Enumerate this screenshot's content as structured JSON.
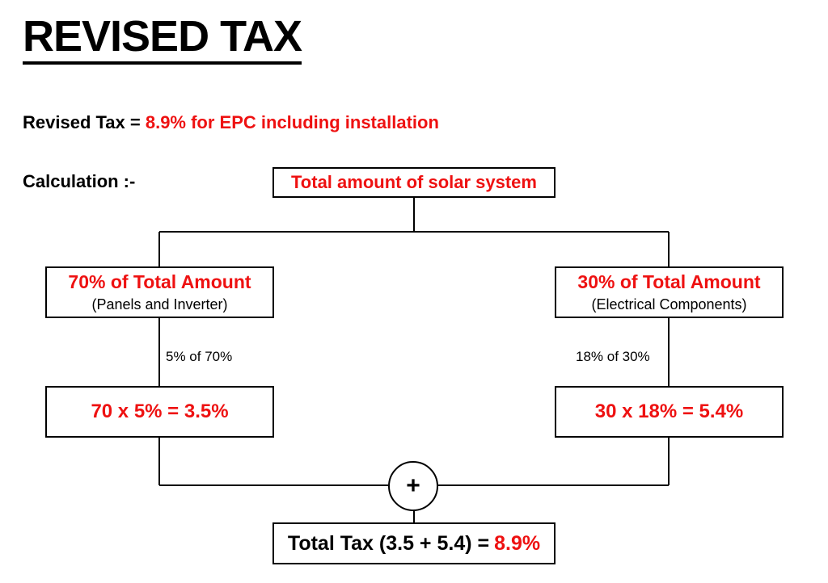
{
  "title": "REVISED TAX",
  "revised": {
    "prefix": "Revised Tax = ",
    "value": "8.9% for EPC including installation"
  },
  "calculation_label": "Calculation :-",
  "top_node": "Total amount of solar system",
  "left_branch": {
    "heading": "70% of Total Amount",
    "subtitle": "(Panels and Inverter)",
    "rate_label": "5% of  70%",
    "result": "70 x 5% = 3.5%"
  },
  "right_branch": {
    "heading": "30% of Total Amount",
    "subtitle": "(Electrical Components)",
    "rate_label": "18% of  30%",
    "result": "30 x 18% = 5.4%"
  },
  "operator": "+",
  "total": {
    "prefix": "Total Tax (3.5 + 5.4) = ",
    "value": "8.9%"
  },
  "colors": {
    "accent": "#ee1111",
    "text": "#000000",
    "background": "#ffffff"
  }
}
